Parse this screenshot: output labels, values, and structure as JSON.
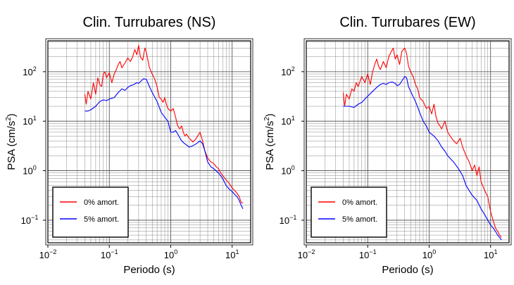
{
  "figure": {
    "panels": [
      {
        "title": "Clin. Turrubares (NS)",
        "xlabel": "Periodo (s)",
        "ylabel_main": "PSA (cm/s",
        "ylabel_sup": "2",
        "ylabel_close": ")",
        "x_ticks": [
          {
            "value": 0.01,
            "base": "10",
            "exp": "−2"
          },
          {
            "value": 0.1,
            "base": "10",
            "exp": "−1"
          },
          {
            "value": 1,
            "base": "10",
            "exp": "0"
          },
          {
            "value": 10,
            "base": "10",
            "exp": "1"
          }
        ],
        "y_ticks": [
          {
            "value": 0.1,
            "base": "10",
            "exp": "−1"
          },
          {
            "value": 1,
            "base": "10",
            "exp": "0"
          },
          {
            "value": 10,
            "base": "10",
            "exp": "1"
          },
          {
            "value": 100,
            "base": "10",
            "exp": "2"
          }
        ],
        "legend": [
          "0% amort.",
          "5% amort."
        ]
      },
      {
        "title": "Clin. Turrubares (EW)",
        "xlabel": "Periodo (s)",
        "ylabel_main": "PSA (cm/s",
        "ylabel_sup": "2",
        "ylabel_close": ")",
        "x_ticks": [
          {
            "value": 0.01,
            "base": "10",
            "exp": "−2"
          },
          {
            "value": 0.1,
            "base": "10",
            "exp": "−1"
          },
          {
            "value": 1,
            "base": "10",
            "exp": "0"
          },
          {
            "value": 10,
            "base": "10",
            "exp": "1"
          }
        ],
        "y_ticks": [
          {
            "value": 0.1,
            "base": "10",
            "exp": "−1"
          },
          {
            "value": 1,
            "base": "10",
            "exp": "0"
          },
          {
            "value": 10,
            "base": "10",
            "exp": "1"
          },
          {
            "value": 100,
            "base": "10",
            "exp": "2"
          }
        ],
        "legend": [
          "0% amort.",
          "5% amort."
        ]
      }
    ]
  },
  "chart_data": [
    {
      "type": "line",
      "title": "Clin. Turrubares (NS)",
      "xlabel": "Periodo (s)",
      "ylabel": "PSA (cm/s2)",
      "x_scale": "log",
      "y_scale": "log",
      "xlim": [
        0.01,
        20
      ],
      "ylim": [
        0.035,
        420
      ],
      "grid": true,
      "legend_position": "bottom-left",
      "series": [
        {
          "name": "0% amort.",
          "color": "#ff0000",
          "points": [
            [
              0.04,
              35
            ],
            [
              0.042,
              22
            ],
            [
              0.045,
              40
            ],
            [
              0.05,
              28
            ],
            [
              0.055,
              60
            ],
            [
              0.06,
              35
            ],
            [
              0.065,
              75
            ],
            [
              0.07,
              55
            ],
            [
              0.075,
              50
            ],
            [
              0.08,
              90
            ],
            [
              0.085,
              100
            ],
            [
              0.09,
              75
            ],
            [
              0.1,
              95
            ],
            [
              0.11,
              60
            ],
            [
              0.12,
              90
            ],
            [
              0.13,
              110
            ],
            [
              0.14,
              140
            ],
            [
              0.15,
              160
            ],
            [
              0.16,
              120
            ],
            [
              0.18,
              150
            ],
            [
              0.2,
              190
            ],
            [
              0.22,
              160
            ],
            [
              0.24,
              200
            ],
            [
              0.26,
              280
            ],
            [
              0.28,
              220
            ],
            [
              0.3,
              340
            ],
            [
              0.32,
              200
            ],
            [
              0.35,
              170
            ],
            [
              0.38,
              300
            ],
            [
              0.4,
              250
            ],
            [
              0.45,
              120
            ],
            [
              0.5,
              90
            ],
            [
              0.55,
              70
            ],
            [
              0.6,
              50
            ],
            [
              0.65,
              30
            ],
            [
              0.7,
              28
            ],
            [
              0.75,
              24
            ],
            [
              0.8,
              30
            ],
            [
              0.85,
              22
            ],
            [
              0.9,
              18
            ],
            [
              1.0,
              16
            ],
            [
              1.1,
              18
            ],
            [
              1.2,
              12
            ],
            [
              1.3,
              8
            ],
            [
              1.4,
              7
            ],
            [
              1.5,
              8
            ],
            [
              1.6,
              6
            ],
            [
              1.7,
              5
            ],
            [
              1.8,
              5.5
            ],
            [
              2.0,
              4.5
            ],
            [
              2.3,
              3.8
            ],
            [
              2.6,
              4.5
            ],
            [
              3.0,
              6
            ],
            [
              3.3,
              4
            ],
            [
              3.6,
              2.5
            ],
            [
              4.0,
              1.8
            ],
            [
              4.5,
              1.5
            ],
            [
              5.0,
              1.4
            ],
            [
              5.5,
              1.2
            ],
            [
              6.0,
              1.1
            ],
            [
              6.5,
              0.9
            ],
            [
              7.0,
              0.8
            ],
            [
              8.0,
              0.65
            ],
            [
              9.0,
              0.55
            ],
            [
              10.0,
              0.45
            ],
            [
              11.0,
              0.4
            ],
            [
              12.0,
              0.35
            ],
            [
              13.0,
              0.3
            ],
            [
              14.0,
              0.23
            ],
            [
              15.0,
              0.22
            ]
          ]
        },
        {
          "name": "5% amort.",
          "color": "#0000ff",
          "points": [
            [
              0.04,
              16
            ],
            [
              0.045,
              16
            ],
            [
              0.05,
              17
            ],
            [
              0.06,
              20
            ],
            [
              0.07,
              25
            ],
            [
              0.08,
              27
            ],
            [
              0.09,
              26
            ],
            [
              0.1,
              28
            ],
            [
              0.12,
              30
            ],
            [
              0.14,
              38
            ],
            [
              0.16,
              45
            ],
            [
              0.18,
              42
            ],
            [
              0.2,
              48
            ],
            [
              0.22,
              52
            ],
            [
              0.25,
              55
            ],
            [
              0.28,
              60
            ],
            [
              0.3,
              58
            ],
            [
              0.33,
              65
            ],
            [
              0.36,
              72
            ],
            [
              0.4,
              70
            ],
            [
              0.45,
              50
            ],
            [
              0.5,
              38
            ],
            [
              0.6,
              25
            ],
            [
              0.7,
              15
            ],
            [
              0.8,
              12
            ],
            [
              0.9,
              10
            ],
            [
              1.0,
              6
            ],
            [
              1.1,
              6
            ],
            [
              1.2,
              6.5
            ],
            [
              1.3,
              5.5
            ],
            [
              1.5,
              4
            ],
            [
              1.7,
              3.5
            ],
            [
              2.0,
              3
            ],
            [
              2.3,
              3.2
            ],
            [
              2.6,
              3.5
            ],
            [
              3.0,
              4
            ],
            [
              3.3,
              3.5
            ],
            [
              3.6,
              2.5
            ],
            [
              4.0,
              1.5
            ],
            [
              4.5,
              1.2
            ],
            [
              5.0,
              1.1
            ],
            [
              6.0,
              0.9
            ],
            [
              7.0,
              0.7
            ],
            [
              8.0,
              0.5
            ],
            [
              9.0,
              0.42
            ],
            [
              10.0,
              0.38
            ],
            [
              11.0,
              0.33
            ],
            [
              12.0,
              0.3
            ],
            [
              13.0,
              0.25
            ],
            [
              14.0,
              0.2
            ],
            [
              15.0,
              0.17
            ]
          ]
        }
      ]
    },
    {
      "type": "line",
      "title": "Clin. Turrubares (EW)",
      "xlabel": "Periodo (s)",
      "ylabel": "PSA (cm/s2)",
      "x_scale": "log",
      "y_scale": "log",
      "xlim": [
        0.01,
        20
      ],
      "ylim": [
        0.035,
        420
      ],
      "grid": true,
      "legend_position": "bottom-left",
      "series": [
        {
          "name": "0% amort.",
          "color": "#ff0000",
          "points": [
            [
              0.04,
              38
            ],
            [
              0.042,
              20
            ],
            [
              0.045,
              35
            ],
            [
              0.05,
              28
            ],
            [
              0.055,
              45
            ],
            [
              0.06,
              40
            ],
            [
              0.065,
              60
            ],
            [
              0.07,
              50
            ],
            [
              0.08,
              80
            ],
            [
              0.09,
              60
            ],
            [
              0.1,
              90
            ],
            [
              0.11,
              55
            ],
            [
              0.12,
              100
            ],
            [
              0.13,
              140
            ],
            [
              0.14,
              180
            ],
            [
              0.15,
              130
            ],
            [
              0.16,
              110
            ],
            [
              0.18,
              160
            ],
            [
              0.2,
              120
            ],
            [
              0.22,
              200
            ],
            [
              0.24,
              250
            ],
            [
              0.26,
              300
            ],
            [
              0.28,
              180
            ],
            [
              0.3,
              220
            ],
            [
              0.33,
              140
            ],
            [
              0.36,
              260
            ],
            [
              0.4,
              300
            ],
            [
              0.43,
              230
            ],
            [
              0.46,
              130
            ],
            [
              0.5,
              100
            ],
            [
              0.55,
              80
            ],
            [
              0.6,
              55
            ],
            [
              0.65,
              45
            ],
            [
              0.7,
              30
            ],
            [
              0.8,
              25
            ],
            [
              0.9,
              18
            ],
            [
              1.0,
              20
            ],
            [
              1.1,
              14
            ],
            [
              1.2,
              22
            ],
            [
              1.3,
              12
            ],
            [
              1.4,
              9
            ],
            [
              1.5,
              8
            ],
            [
              1.6,
              7
            ],
            [
              1.8,
              10
            ],
            [
              2.0,
              6
            ],
            [
              2.2,
              5
            ],
            [
              2.5,
              4
            ],
            [
              2.8,
              3.5
            ],
            [
              3.2,
              4.5
            ],
            [
              3.5,
              3
            ],
            [
              4.0,
              2
            ],
            [
              4.5,
              1.5
            ],
            [
              5.0,
              1
            ],
            [
              5.5,
              1.3
            ],
            [
              6.0,
              0.8
            ],
            [
              6.5,
              1.2
            ],
            [
              7.0,
              0.6
            ],
            [
              8.0,
              0.4
            ],
            [
              9.0,
              0.3
            ],
            [
              10.0,
              0.15
            ],
            [
              11.0,
              0.1
            ],
            [
              12.0,
              0.07
            ],
            [
              13.0,
              0.06
            ],
            [
              14.0,
              0.05
            ],
            [
              15.0,
              0.045
            ]
          ]
        },
        {
          "name": "5% amort.",
          "color": "#0000ff",
          "points": [
            [
              0.04,
              20
            ],
            [
              0.05,
              20
            ],
            [
              0.06,
              19
            ],
            [
              0.07,
              22
            ],
            [
              0.08,
              24
            ],
            [
              0.09,
              28
            ],
            [
              0.1,
              32
            ],
            [
              0.12,
              40
            ],
            [
              0.14,
              48
            ],
            [
              0.16,
              55
            ],
            [
              0.18,
              58
            ],
            [
              0.2,
              55
            ],
            [
              0.22,
              60
            ],
            [
              0.25,
              62
            ],
            [
              0.28,
              58
            ],
            [
              0.3,
              52
            ],
            [
              0.33,
              55
            ],
            [
              0.36,
              65
            ],
            [
              0.4,
              80
            ],
            [
              0.43,
              75
            ],
            [
              0.46,
              50
            ],
            [
              0.5,
              40
            ],
            [
              0.6,
              25
            ],
            [
              0.7,
              15
            ],
            [
              0.8,
              10
            ],
            [
              0.9,
              8
            ],
            [
              1.0,
              6
            ],
            [
              1.2,
              5
            ],
            [
              1.4,
              4
            ],
            [
              1.6,
              3
            ],
            [
              1.8,
              2.5
            ],
            [
              2.0,
              2
            ],
            [
              2.5,
              1.5
            ],
            [
              3.0,
              1.1
            ],
            [
              3.5,
              0.8
            ],
            [
              4.0,
              0.5
            ],
            [
              5.0,
              0.32
            ],
            [
              6.0,
              0.25
            ],
            [
              7.0,
              0.17
            ],
            [
              8.0,
              0.13
            ],
            [
              9.0,
              0.1
            ],
            [
              10.0,
              0.08
            ],
            [
              11.0,
              0.07
            ],
            [
              12.0,
              0.06
            ],
            [
              13.0,
              0.05
            ],
            [
              14.0,
              0.045
            ],
            [
              15.0,
              0.04
            ]
          ]
        }
      ]
    }
  ]
}
